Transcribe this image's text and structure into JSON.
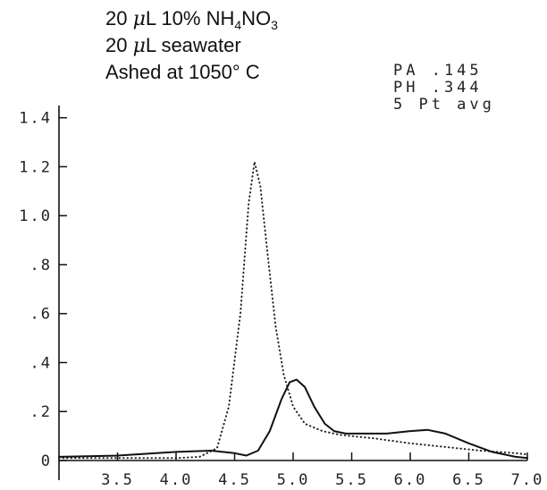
{
  "chart_data": {
    "type": "line",
    "title": "",
    "xlabel": "",
    "ylabel": "",
    "xlim": [
      3.0,
      7.0
    ],
    "ylim": [
      0,
      1.45
    ],
    "grid": false,
    "legend": "none",
    "annotations": {
      "line1_prefix": "20 ",
      "line1_mu": "μ",
      "line1_rest": "L 10% NH",
      "line1_sub1": "4",
      "line1_mid": "NO",
      "line1_sub2": "3",
      "line2_prefix": "20 ",
      "line2_mu": "μ",
      "line2_rest": "L seawater",
      "line3": "Ashed at 1050° C"
    },
    "readout": [
      "PA  .145",
      "PH  .344",
      "5 Pt avg"
    ],
    "y_ticks": [
      {
        "value": 0,
        "label": "0"
      },
      {
        "value": 0.2,
        "label": ".2"
      },
      {
        "value": 0.4,
        "label": ".4"
      },
      {
        "value": 0.6,
        "label": ".6"
      },
      {
        "value": 0.8,
        "label": ".8"
      },
      {
        "value": 1.0,
        "label": "1.0"
      },
      {
        "value": 1.2,
        "label": "1.2"
      },
      {
        "value": 1.4,
        "label": "1.4"
      }
    ],
    "x_ticks": [
      {
        "value": 3.5,
        "label": "3.5"
      },
      {
        "value": 4.0,
        "label": "4.0"
      },
      {
        "value": 4.5,
        "label": "4.5"
      },
      {
        "value": 5.0,
        "label": "5.0"
      },
      {
        "value": 5.5,
        "label": "5.5"
      },
      {
        "value": 6.0,
        "label": "6.0"
      },
      {
        "value": 6.5,
        "label": "6.5"
      },
      {
        "value": 7.0,
        "label": "7.0"
      }
    ],
    "series": [
      {
        "style": "dotted",
        "color": "#222222",
        "points": [
          [
            3.0,
            0.01
          ],
          [
            3.5,
            0.01
          ],
          [
            4.0,
            0.01
          ],
          [
            4.2,
            0.015
          ],
          [
            4.35,
            0.05
          ],
          [
            4.45,
            0.22
          ],
          [
            4.55,
            0.6
          ],
          [
            4.62,
            1.05
          ],
          [
            4.67,
            1.22
          ],
          [
            4.72,
            1.12
          ],
          [
            4.78,
            0.85
          ],
          [
            4.85,
            0.55
          ],
          [
            4.92,
            0.35
          ],
          [
            5.0,
            0.22
          ],
          [
            5.1,
            0.15
          ],
          [
            5.25,
            0.12
          ],
          [
            5.4,
            0.105
          ],
          [
            5.7,
            0.09
          ],
          [
            6.0,
            0.07
          ],
          [
            6.3,
            0.055
          ],
          [
            6.6,
            0.04
          ],
          [
            6.9,
            0.03
          ],
          [
            7.0,
            0.025
          ]
        ]
      },
      {
        "style": "solid",
        "color": "#111111",
        "points": [
          [
            3.0,
            0.015
          ],
          [
            3.5,
            0.02
          ],
          [
            4.0,
            0.035
          ],
          [
            4.3,
            0.04
          ],
          [
            4.5,
            0.03
          ],
          [
            4.6,
            0.02
          ],
          [
            4.7,
            0.04
          ],
          [
            4.8,
            0.12
          ],
          [
            4.9,
            0.25
          ],
          [
            4.97,
            0.32
          ],
          [
            5.03,
            0.33
          ],
          [
            5.1,
            0.3
          ],
          [
            5.18,
            0.22
          ],
          [
            5.27,
            0.15
          ],
          [
            5.35,
            0.12
          ],
          [
            5.45,
            0.11
          ],
          [
            5.6,
            0.11
          ],
          [
            5.8,
            0.11
          ],
          [
            6.0,
            0.12
          ],
          [
            6.15,
            0.125
          ],
          [
            6.3,
            0.11
          ],
          [
            6.5,
            0.07
          ],
          [
            6.7,
            0.035
          ],
          [
            6.9,
            0.015
          ],
          [
            7.0,
            0.01
          ]
        ]
      }
    ]
  }
}
